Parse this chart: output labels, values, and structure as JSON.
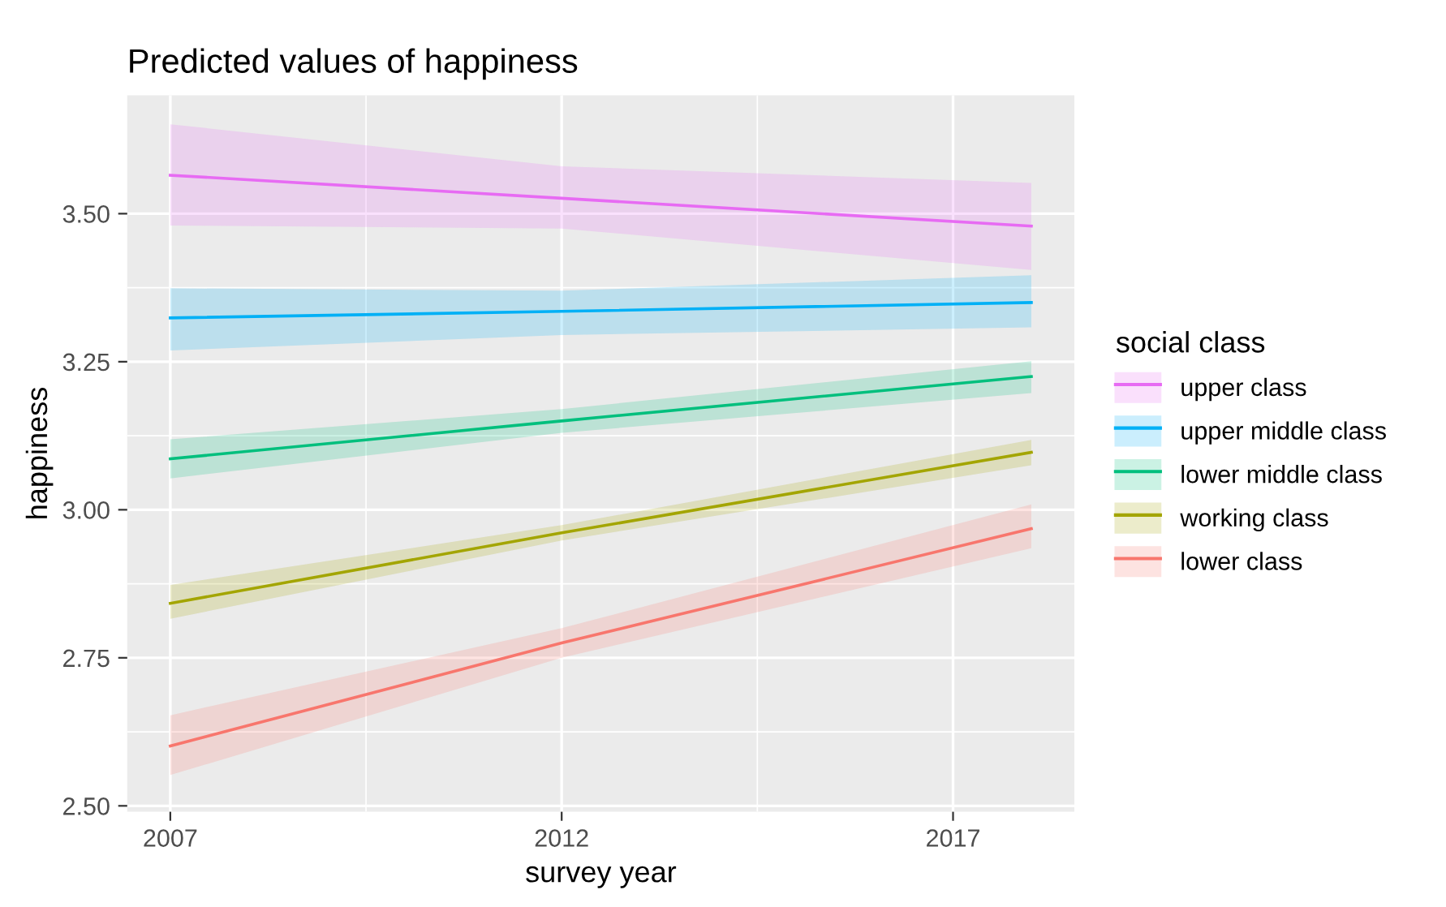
{
  "chart_data": {
    "type": "line",
    "title": "Predicted values of happiness",
    "xlabel": "survey year",
    "ylabel": "happiness",
    "legend_title": "social class",
    "x": [
      2007,
      2012,
      2018
    ],
    "series": [
      {
        "name": "upper class",
        "color": "#e76bf3",
        "values": [
          3.565,
          3.526,
          3.479
        ],
        "lower": [
          3.48,
          3.475,
          3.405
        ],
        "upper": [
          3.651,
          3.58,
          3.552
        ]
      },
      {
        "name": "upper middle class",
        "color": "#00b0f6",
        "values": [
          3.324,
          3.335,
          3.35
        ],
        "lower": [
          3.269,
          3.295,
          3.308
        ],
        "upper": [
          3.374,
          3.37,
          3.396
        ]
      },
      {
        "name": "lower middle class",
        "color": "#00bf7d",
        "values": [
          3.086,
          3.15,
          3.225
        ],
        "lower": [
          3.053,
          3.13,
          3.197
        ],
        "upper": [
          3.119,
          3.17,
          3.251
        ]
      },
      {
        "name": "working class",
        "color": "#a3a500",
        "values": [
          2.842,
          2.961,
          3.097
        ],
        "lower": [
          2.816,
          2.948,
          3.075
        ],
        "upper": [
          2.873,
          2.974,
          3.118
        ]
      },
      {
        "name": "lower class",
        "color": "#f8766d",
        "values": [
          2.601,
          2.775,
          2.968
        ],
        "lower": [
          2.552,
          2.75,
          2.935
        ],
        "upper": [
          2.653,
          2.8,
          3.009
        ]
      }
    ],
    "xlim": [
      2006.45,
      2018.55
    ],
    "ylim": [
      2.49,
      3.7
    ],
    "xticks": [
      2007,
      2012,
      2017
    ],
    "yticks": [
      {
        "value": 2.5,
        "label": "2.50"
      },
      {
        "value": 2.75,
        "label": "2.75"
      },
      {
        "value": 3.0,
        "label": "3.00"
      },
      {
        "value": 3.25,
        "label": "3.25"
      },
      {
        "value": 3.5,
        "label": "3.50"
      }
    ],
    "grid": true,
    "legend": "right"
  }
}
